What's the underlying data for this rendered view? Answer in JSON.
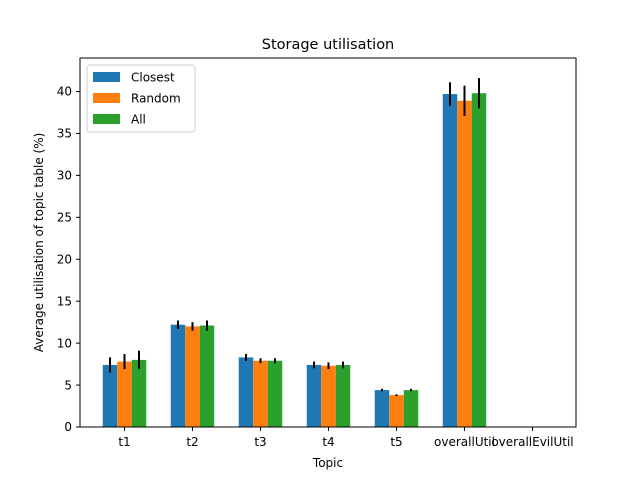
{
  "chart_data": {
    "type": "bar",
    "title": "Storage utilisation",
    "xlabel": "Topic",
    "ylabel": "Average utilisation of topic table (%)",
    "categories": [
      "t1",
      "t2",
      "t3",
      "t4",
      "t5",
      "overallUtil",
      "overallEvilUtil"
    ],
    "ylim": [
      0,
      44
    ],
    "yticks": [
      0,
      5,
      10,
      15,
      20,
      25,
      30,
      35,
      40
    ],
    "grid": false,
    "legend_position": "top-left",
    "series": [
      {
        "name": "Closest",
        "color": "#1f77b4",
        "values": [
          7.4,
          12.2,
          8.3,
          7.4,
          4.4,
          39.7,
          0
        ],
        "errors": [
          0.9,
          0.5,
          0.4,
          0.4,
          0.15,
          1.4,
          0
        ]
      },
      {
        "name": "Random",
        "color": "#ff7f0e",
        "values": [
          7.8,
          12.0,
          7.9,
          7.3,
          3.8,
          38.9,
          0
        ],
        "errors": [
          0.9,
          0.5,
          0.3,
          0.4,
          0.1,
          1.8,
          0
        ]
      },
      {
        "name": "All",
        "color": "#2ca02c",
        "values": [
          8.0,
          12.1,
          7.9,
          7.4,
          4.4,
          39.8,
          0
        ],
        "errors": [
          1.1,
          0.6,
          0.3,
          0.4,
          0.15,
          1.8,
          0
        ]
      }
    ]
  }
}
